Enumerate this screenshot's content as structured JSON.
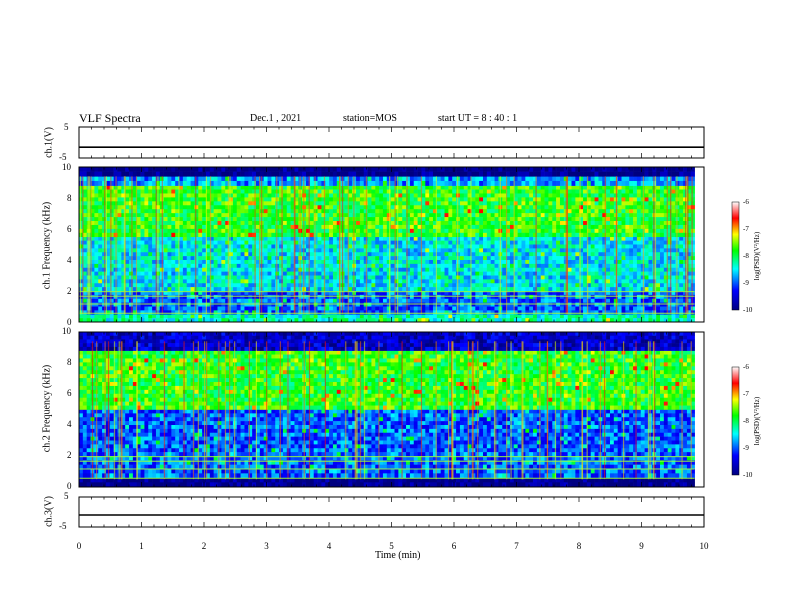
{
  "header": {
    "title": "VLF Spectra",
    "date": "Dec.1 , 2021",
    "station": "station=MOS",
    "start": "start UT = 8 : 40 : 1"
  },
  "colors": {
    "spectrum_scale": [
      "#000080",
      "#0000ff",
      "#00ffff",
      "#00ff00",
      "#ffff00",
      "#ff0000",
      "#ffffff"
    ]
  },
  "chart_data": [
    {
      "type": "line",
      "panel": "ch1-waveform",
      "ylabel": "ch.1(V)",
      "ylim": [
        -5,
        5
      ],
      "yticks": [
        "5",
        "-5"
      ],
      "x": [
        0,
        10
      ],
      "y": [
        -1.5,
        -1.5
      ]
    },
    {
      "type": "heatmap",
      "panel": "ch1-spectrogram",
      "ylabel": "ch.1 Frequency (kHz)",
      "ylim": [
        0,
        10
      ],
      "yticks": [
        "0",
        "2",
        "4",
        "6",
        "8",
        "10"
      ],
      "xlim": [
        0,
        9.85
      ],
      "bands": [
        {
          "from": 0,
          "to": 0.5,
          "level": -8.3
        },
        {
          "from": 0.5,
          "to": 2.0,
          "level": -9.0
        },
        {
          "from": 2.0,
          "to": 5.5,
          "level": -8.5
        },
        {
          "from": 5.5,
          "to": 8.8,
          "level": -7.8
        },
        {
          "from": 8.8,
          "to": 9.4,
          "level": -8.8
        },
        {
          "from": 9.4,
          "to": 10,
          "level": -10
        }
      ],
      "colorbar": {
        "label": "log(PSD)(V²/Hz)",
        "range": [
          -10,
          -6
        ],
        "ticks": [
          "-6",
          "-7",
          "-8",
          "-9",
          "-10"
        ]
      }
    },
    {
      "type": "heatmap",
      "panel": "ch2-spectrogram",
      "ylabel": "ch.2 Frequency (kHz)",
      "ylim": [
        0,
        10
      ],
      "yticks": [
        "0",
        "2",
        "4",
        "6",
        "8",
        "10"
      ],
      "xlim": [
        0,
        9.85
      ],
      "bands": [
        {
          "from": 0,
          "to": 0.6,
          "level": -10
        },
        {
          "from": 0.6,
          "to": 2.0,
          "level": -9.0
        },
        {
          "from": 2.0,
          "to": 5.0,
          "level": -9.0
        },
        {
          "from": 5.0,
          "to": 8.8,
          "level": -7.8
        },
        {
          "from": 8.8,
          "to": 10,
          "level": -9.6
        }
      ],
      "colorbar": {
        "label": "log(PSD)(V²/Hz)",
        "range": [
          -10,
          -6
        ],
        "ticks": [
          "-6",
          "-7",
          "-8",
          "-9",
          "-10"
        ]
      }
    },
    {
      "type": "line",
      "panel": "ch3-waveform",
      "ylabel": "ch.3(V)",
      "ylim": [
        -5,
        5
      ],
      "yticks": [
        "5",
        "-5"
      ],
      "x": [
        0,
        10
      ],
      "y": [
        -1.0,
        -1.0
      ]
    }
  ],
  "xaxis": {
    "label": "Time (min)",
    "ticks": [
      "0",
      "1",
      "2",
      "3",
      "4",
      "5",
      "6",
      "7",
      "8",
      "9",
      "10"
    ]
  }
}
